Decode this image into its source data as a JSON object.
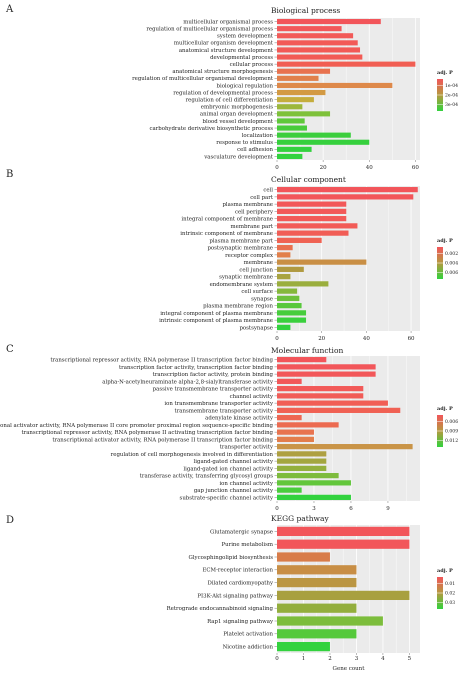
{
  "chart_data": [
    {
      "type": "bar",
      "orientation": "horizontal",
      "panel_letter": "A",
      "title": "Biological process",
      "xlabel": "",
      "xlim": [
        0,
        62
      ],
      "xticks": [
        0,
        20,
        40,
        60
      ],
      "legend": {
        "title": "adj. P",
        "labels": [
          "1e-04",
          "2e-04",
          "3e-04"
        ],
        "placement": "right"
      },
      "categories": [
        "multicellular organismal process",
        "regulation of multicellular organismal process",
        "system development",
        "multicellular organism development",
        "anatomical structure development",
        "developmental process",
        "cellular process",
        "anatomical structure morphogenesis",
        "regulation of multicellular organismal development",
        "biological regulation",
        "regulation of developmental process",
        "regulation of cell differentiation",
        "embryonic morphogenesis",
        "animal organ development",
        "blood vessel development",
        "carbohydrate derivative biosynthetic process",
        "localization",
        "response to stimulus",
        "cell adhesion",
        "vasculature development"
      ],
      "values": [
        45,
        28,
        33,
        35,
        36,
        37,
        60,
        23,
        18,
        50,
        21,
        16,
        11,
        23,
        12,
        13,
        32,
        40,
        15,
        11
      ],
      "colors": [
        "#f2555a",
        "#f2585a",
        "#f25a58",
        "#f25a57",
        "#f25a56",
        "#f25b55",
        "#f15e53",
        "#e8724f",
        "#e1804b",
        "#de894a",
        "#d39a43",
        "#c5ad3d",
        "#9cb73b",
        "#7ec13a",
        "#5fc83a",
        "#48cc3b",
        "#3bce3c",
        "#36d03d",
        "#33d13e",
        "#32d23e"
      ]
    },
    {
      "type": "bar",
      "orientation": "horizontal",
      "panel_letter": "B",
      "title": "Cellular component",
      "xlabel": "",
      "xlim": [
        0,
        64
      ],
      "xticks": [
        0,
        20,
        40,
        60
      ],
      "legend": {
        "title": "adj. P",
        "labels": [
          "0.002",
          "0.004",
          "0.006"
        ],
        "placement": "right"
      },
      "categories": [
        "cell",
        "cell part",
        "plasma membrane",
        "cell periphery",
        "integral component of membrane",
        "membrane part",
        "intrinsic component of membrane",
        "plasma membrane part",
        "postsynaptic membrane",
        "receptor complex",
        "membrane",
        "cell junction",
        "synaptic membrane",
        "endomembrane system",
        "cell surface",
        "synapse",
        "plasma membrane region",
        "integral component of plasma membrane",
        "intrinsic component of plasma membrane",
        "postsynapse"
      ],
      "values": [
        63,
        61,
        31,
        31,
        31,
        36,
        32,
        20,
        7,
        6,
        40,
        12,
        6,
        23,
        9,
        10,
        11,
        13,
        13,
        6
      ],
      "colors": [
        "#f2555a",
        "#f2565a",
        "#f25859",
        "#f25959",
        "#f25a58",
        "#f25b57",
        "#f15d56",
        "#ef6253",
        "#e9704f",
        "#e2804b",
        "#c98f45",
        "#b09a41",
        "#a8a33f",
        "#9aae3d",
        "#85b83b",
        "#6dc13b",
        "#58c83b",
        "#46cd3c",
        "#3ad03d",
        "#32d23e"
      ]
    },
    {
      "type": "bar",
      "orientation": "horizontal",
      "panel_letter": "C",
      "title": "Molecular function",
      "xlabel": "",
      "xlim": [
        0,
        11.6
      ],
      "xticks": [
        0,
        3,
        6,
        9
      ],
      "legend": {
        "title": "adj. P",
        "labels": [
          "0.006",
          "0.009",
          "0.012"
        ],
        "placement": "right"
      },
      "categories": [
        "transcriptional repressor activity, RNA polymerase II transcription factor binding",
        "transcription factor activity, transcription factor binding",
        "transcription factor activity, protein binding",
        "alpha-N-acetylneuraminate alpha-2,8-sialyltransferase activity",
        "passive transmembrane transporter activity",
        "channel activity",
        "ion transmembrane transporter activity",
        "transmembrane transporter activity",
        "adenylate kinase activity",
        "transcriptional activator activity, RNA polymerase II core promoter proximal region sequence-specific binding",
        "transcriptional repressor activity, RNA polymerase II activating transcription factor binding",
        "transcriptional activator activity, RNA polymerase II transcription factor binding",
        "transporter activity",
        "regulation of cell morphogenesis involved in differentiation",
        "ligand-gated channel activity",
        "ligand-gated ion channel activity",
        "transferase activity, transferring glycosyl groups",
        "ion channel activity",
        "gap junction channel activity",
        "substrate-specific channel activity"
      ],
      "values": [
        4,
        8,
        8,
        2,
        7,
        7,
        9,
        10,
        2,
        5,
        3,
        3,
        11,
        4,
        4,
        4,
        5,
        6,
        2,
        6
      ],
      "colors": [
        "#f2555a",
        "#f2565a",
        "#f25759",
        "#f25859",
        "#f25a58",
        "#f15c57",
        "#f15e56",
        "#f06154",
        "#ee6652",
        "#ec6b51",
        "#e8734f",
        "#e37d4c",
        "#c99447",
        "#aea041",
        "#a3a63f",
        "#93b03d",
        "#7dbb3c",
        "#62c63b",
        "#49cd3c",
        "#32d23e"
      ]
    },
    {
      "type": "bar",
      "orientation": "horizontal",
      "panel_letter": "D",
      "title": "KEGG pathway",
      "xlabel": "Gene count",
      "xlim": [
        0,
        5.4
      ],
      "xticks": [
        0,
        1,
        2,
        3,
        4,
        5
      ],
      "legend": {
        "title": "adj. P",
        "labels": [
          "0.01",
          "0.02",
          "0.03"
        ],
        "placement": "right"
      },
      "categories": [
        "Glutamatergic synapse",
        "Purine metabolism",
        "Glycosphingolipid biosynthesis",
        "ECM-receptor interaction",
        "Dilated cardiomyopathy",
        "PI3K-Akt signaling pathway",
        "Retrograde endocannabinoid signaling",
        "Rap1 signaling pathway",
        "Platelet activation",
        "Nicotine addiction"
      ],
      "values": [
        5,
        5,
        2,
        3,
        3,
        5,
        3,
        4,
        3,
        2
      ],
      "colors": [
        "#f2555a",
        "#f2565a",
        "#d87c49",
        "#c88e45",
        "#bb9642",
        "#a8a03f",
        "#93ae3d",
        "#7cbd3c",
        "#55c93b",
        "#32d23e"
      ]
    }
  ]
}
